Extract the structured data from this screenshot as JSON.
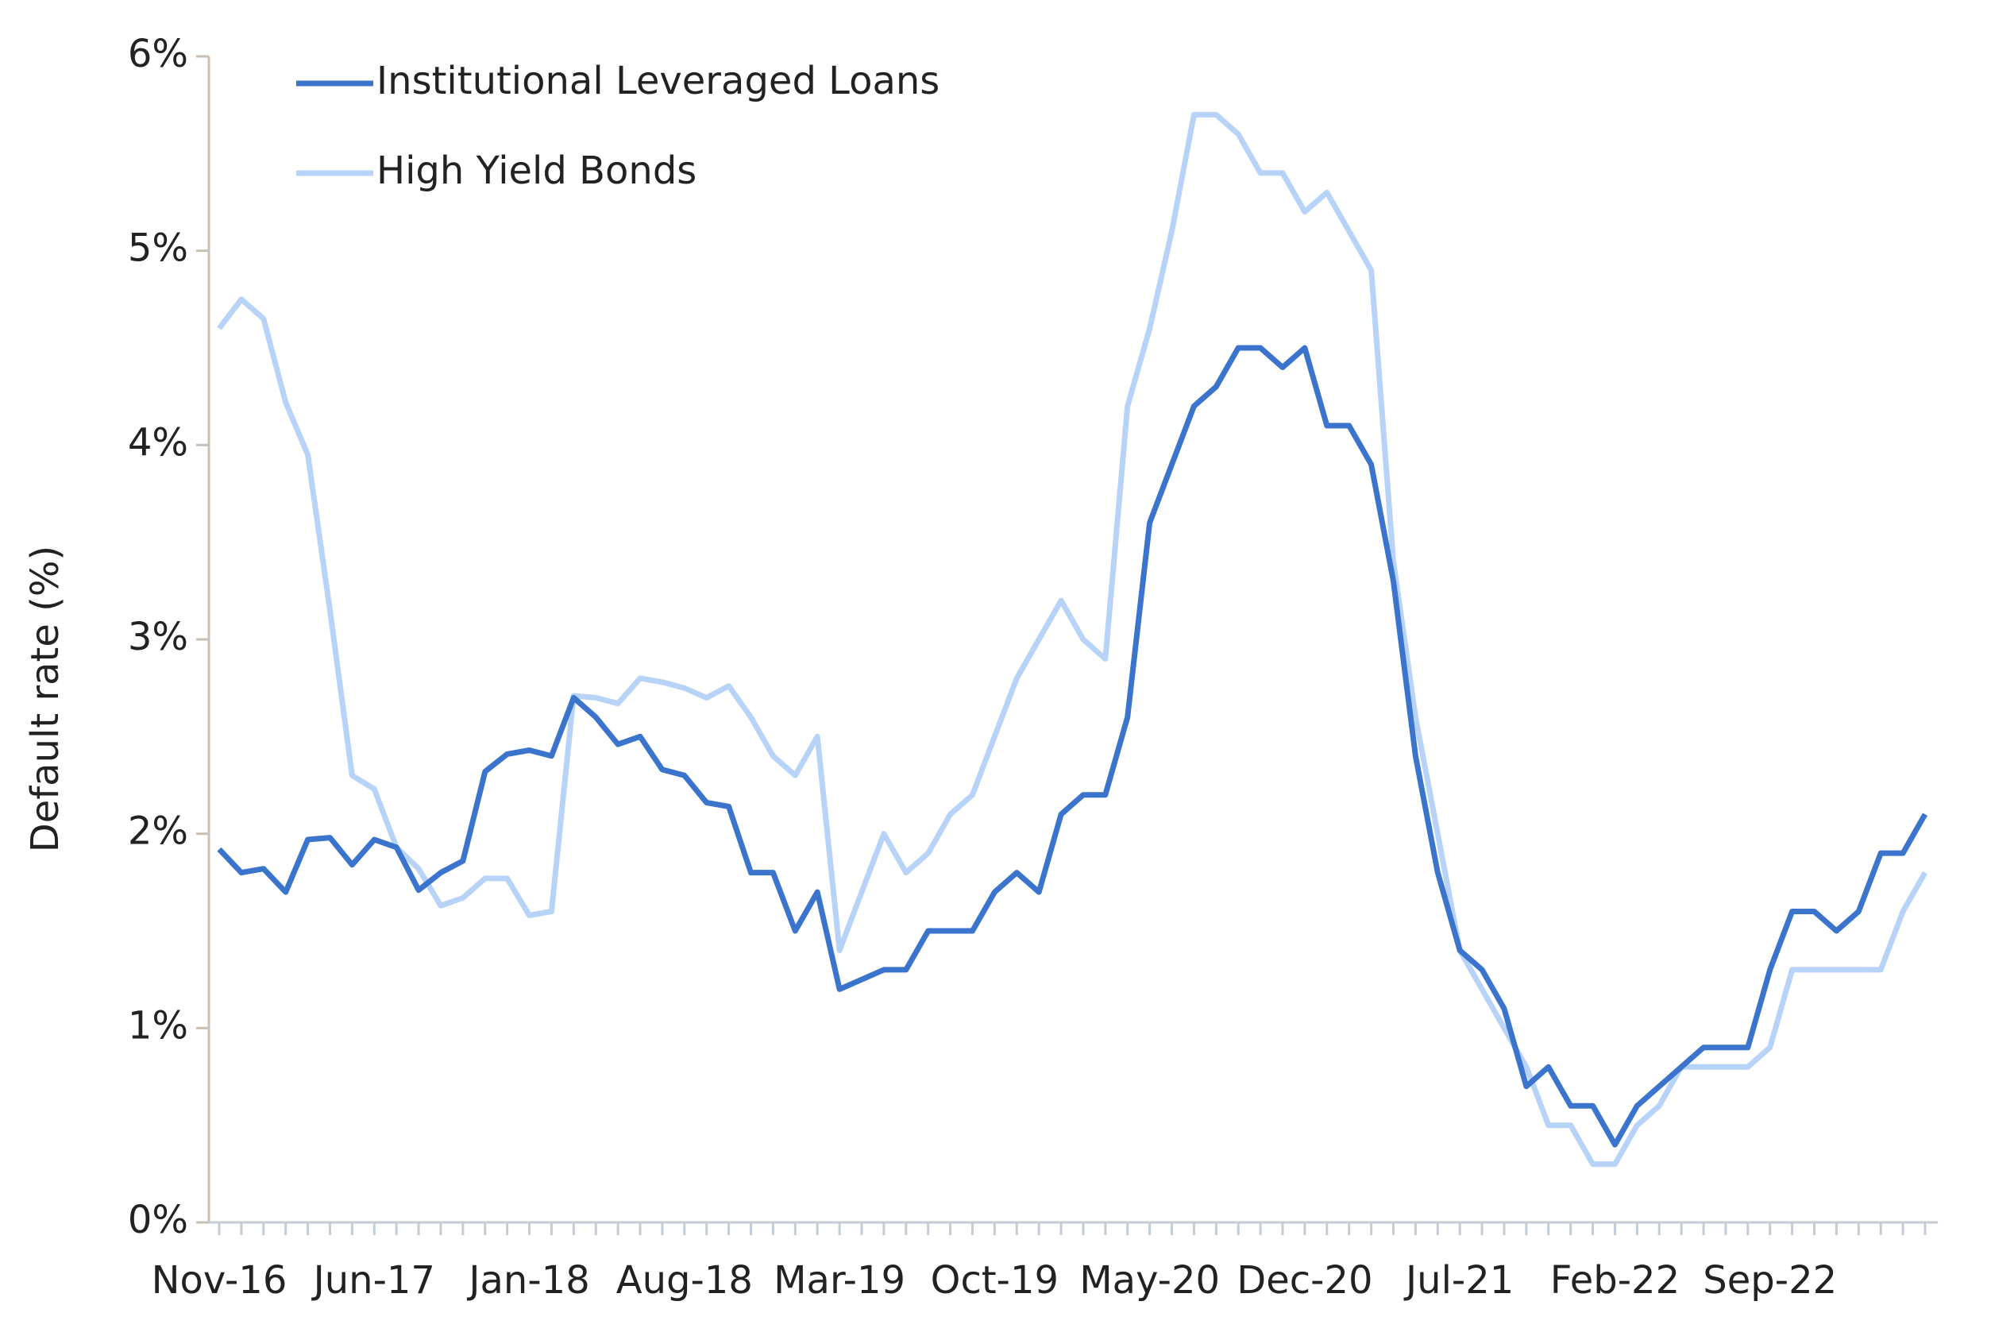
{
  "chart_data": {
    "type": "line",
    "y_label": "Default rate (%)",
    "categories": [
      "Nov-16",
      null,
      null,
      null,
      null,
      null,
      null,
      "Jun-17",
      null,
      null,
      null,
      null,
      null,
      null,
      "Jan-18",
      null,
      null,
      null,
      null,
      null,
      null,
      "Aug-18",
      null,
      null,
      null,
      null,
      null,
      null,
      "Mar-19",
      null,
      null,
      null,
      null,
      null,
      null,
      "Oct-19",
      null,
      null,
      null,
      null,
      null,
      null,
      "May-20",
      null,
      null,
      null,
      null,
      null,
      null,
      "Dec-20",
      null,
      null,
      null,
      null,
      null,
      null,
      "Jul-21",
      null,
      null,
      null,
      null,
      null,
      null,
      "Feb-22",
      null,
      null,
      null,
      null,
      null,
      null,
      "Sep-22",
      null,
      null,
      null,
      null,
      null,
      null,
      null
    ],
    "series": [
      {
        "name": "Institutional Leveraged Loans",
        "color": "#3a74cc",
        "values": [
          1.92,
          1.8,
          1.82,
          1.7,
          1.97,
          1.98,
          1.84,
          1.97,
          1.93,
          1.71,
          1.8,
          1.86,
          2.32,
          2.41,
          2.43,
          2.4,
          2.7,
          2.6,
          2.46,
          2.5,
          2.33,
          2.3,
          2.16,
          2.14,
          1.8,
          1.8,
          1.5,
          1.7,
          1.2,
          1.25,
          1.3,
          1.3,
          1.5,
          1.5,
          1.5,
          1.7,
          1.8,
          1.7,
          2.1,
          2.2,
          2.2,
          2.6,
          3.6,
          3.9,
          4.2,
          4.3,
          4.5,
          4.5,
          4.4,
          4.5,
          4.1,
          4.1,
          3.9,
          3.3,
          2.4,
          1.8,
          1.4,
          1.3,
          1.1,
          0.7,
          0.8,
          0.6,
          0.6,
          0.4,
          0.6,
          0.7,
          0.8,
          0.9,
          0.9,
          0.9,
          1.3,
          1.6,
          1.6,
          1.5,
          1.6,
          1.9,
          1.9,
          2.1
        ]
      },
      {
        "name": "High Yield Bonds",
        "color": "#b7d3f7",
        "values": [
          4.6,
          4.75,
          4.65,
          4.22,
          3.95,
          3.15,
          2.3,
          2.23,
          1.93,
          1.82,
          1.63,
          1.67,
          1.77,
          1.77,
          1.58,
          1.6,
          2.71,
          2.7,
          2.67,
          2.8,
          2.78,
          2.75,
          2.7,
          2.76,
          2.6,
          2.4,
          2.3,
          2.5,
          1.4,
          1.7,
          2.0,
          1.8,
          1.9,
          2.1,
          2.2,
          2.5,
          2.8,
          3.0,
          3.2,
          3.0,
          2.9,
          4.2,
          4.6,
          5.1,
          5.7,
          5.7,
          5.6,
          5.4,
          5.4,
          5.2,
          5.3,
          5.1,
          4.9,
          3.4,
          2.6,
          2.0,
          1.4,
          1.2,
          1.0,
          0.8,
          0.5,
          0.5,
          0.3,
          0.3,
          0.5,
          0.6,
          0.8,
          0.8,
          0.8,
          0.8,
          0.9,
          1.3,
          1.3,
          1.3,
          1.3,
          1.3,
          1.6,
          1.8
        ]
      }
    ],
    "ylim": [
      0,
      6
    ],
    "yticks": [
      {
        "value": 0,
        "label": "0%"
      },
      {
        "value": 1,
        "label": "1%"
      },
      {
        "value": 2,
        "label": "2%"
      },
      {
        "value": 3,
        "label": "3%"
      },
      {
        "value": 4,
        "label": "4%"
      },
      {
        "value": 5,
        "label": "5%"
      },
      {
        "value": 6,
        "label": "6%"
      }
    ],
    "legend": "upper left"
  }
}
